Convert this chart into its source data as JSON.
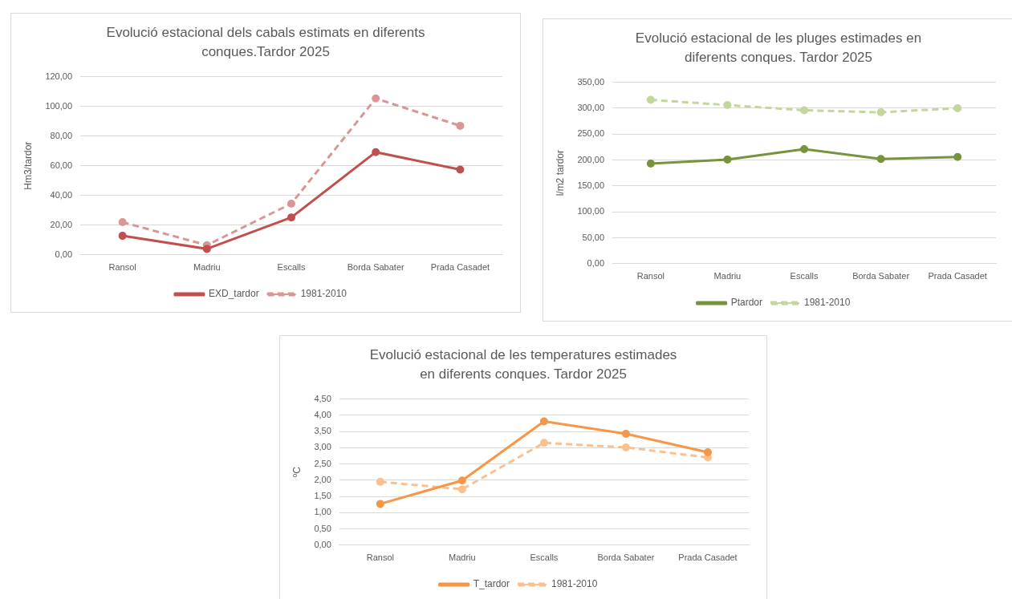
{
  "chart_data": [
    {
      "type": "line",
      "title": "Evolució estacional dels cabals estimats en diferents conques.Tardor 2025",
      "ylabel": "Hm3/tardor",
      "categories": [
        "Ransol",
        "Madriu",
        "Escalls",
        "Borda Sabater",
        "Prada Casadet"
      ],
      "series": [
        {
          "name": "EXD_tardor",
          "color": "#c0504d",
          "line_style": "solid",
          "values": [
            12.8,
            4.0,
            25.2,
            69.2,
            57.4
          ]
        },
        {
          "name": "1981-2010",
          "color": "#d99694",
          "line_style": "dashed",
          "values": [
            22.0,
            6.5,
            34.5,
            105.3,
            86.9
          ]
        }
      ],
      "ylim": [
        0,
        120
      ],
      "yticks": [
        {
          "value": 0,
          "label": "0,00"
        },
        {
          "value": 20,
          "label": "20,00"
        },
        {
          "value": 40,
          "label": "40,00"
        },
        {
          "value": 60,
          "label": "60,00"
        },
        {
          "value": 80,
          "label": "80,00"
        },
        {
          "value": 100,
          "label": "100,00"
        },
        {
          "value": 120,
          "label": "120,00"
        }
      ],
      "grid": "y",
      "legend": "bottom",
      "marker": "circle"
    },
    {
      "type": "line",
      "title": "Evolució estacional de les pluges estimades en diferents conques. Tardor 2025",
      "ylabel": "l/m2 tardor",
      "categories": [
        "Ransol",
        "Madriu",
        "Escalls",
        "Borda Sabater",
        "Prada Casadet"
      ],
      "series": [
        {
          "name": "Ptardor",
          "color": "#77933c",
          "line_style": "solid",
          "values": [
            193,
            201,
            221,
            202,
            206
          ]
        },
        {
          "name": "1981-2010",
          "color": "#c3d69b",
          "line_style": "dashed",
          "values": [
            316,
            306,
            296,
            292,
            300
          ]
        }
      ],
      "ylim": [
        0,
        350
      ],
      "yticks": [
        {
          "value": 0,
          "label": "0,00"
        },
        {
          "value": 50,
          "label": "50,00"
        },
        {
          "value": 100,
          "label": "100,00"
        },
        {
          "value": 150,
          "label": "150,00"
        },
        {
          "value": 200,
          "label": "200,00"
        },
        {
          "value": 250,
          "label": "250,00"
        },
        {
          "value": 300,
          "label": "300,00"
        },
        {
          "value": 350,
          "label": "350,00"
        }
      ],
      "grid": "y",
      "legend": "bottom",
      "marker": "circle"
    },
    {
      "type": "line",
      "title": "Evolució estacional de les temperatures estimades en diferents conques. Tardor 2025",
      "ylabel": "ºC",
      "categories": [
        "Ransol",
        "Madriu",
        "Escalls",
        "Borda Sabater",
        "Prada Casadet"
      ],
      "series": [
        {
          "name": "T_tardor",
          "color": "#f79646",
          "line_style": "solid",
          "values": [
            1.27,
            1.99,
            3.81,
            3.43,
            2.86
          ]
        },
        {
          "name": "1981-2010",
          "color": "#fac090",
          "line_style": "dashed",
          "values": [
            1.95,
            1.72,
            3.15,
            3.01,
            2.7
          ]
        }
      ],
      "ylim": [
        0,
        4.5
      ],
      "yticks": [
        {
          "value": 0,
          "label": "0,00"
        },
        {
          "value": 0.5,
          "label": "0,50"
        },
        {
          "value": 1,
          "label": "1,00"
        },
        {
          "value": 1.5,
          "label": "1,50"
        },
        {
          "value": 2,
          "label": "2,00"
        },
        {
          "value": 2.5,
          "label": "2,50"
        },
        {
          "value": 3,
          "label": "3,00"
        },
        {
          "value": 3.5,
          "label": "3,50"
        },
        {
          "value": 4,
          "label": "4,00"
        },
        {
          "value": 4.5,
          "label": "4,50"
        }
      ],
      "grid": "y",
      "legend": "bottom",
      "marker": "circle"
    }
  ]
}
